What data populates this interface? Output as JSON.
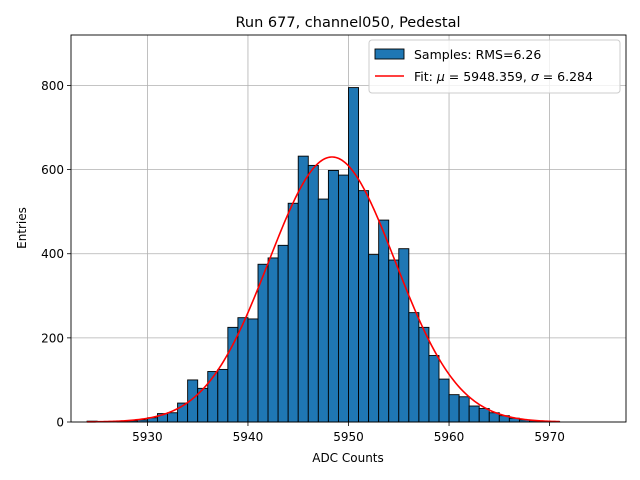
{
  "chart_data": {
    "type": "bar",
    "title": "Run 677, channel050, Pedestal",
    "xlabel": "ADC Counts",
    "ylabel": "Entries",
    "xlim": [
      5922.4,
      5977.6
    ],
    "ylim": [
      0,
      920
    ],
    "xticks": [
      5930,
      5940,
      5950,
      5960,
      5970
    ],
    "yticks": [
      0,
      200,
      400,
      600,
      800
    ],
    "grid": true,
    "legend_position": "top-right",
    "bar_color": "#1f77b4",
    "fit_color": "#ff0000",
    "legend": {
      "samples_label": "Samples: RMS=6.26",
      "fit_label_prefix": "Fit: ",
      "fit_mu_symbol": "μ",
      "fit_mu_text": " = 5948.359, ",
      "fit_sigma_symbol": "σ",
      "fit_sigma_text": " = 6.284"
    },
    "histogram": {
      "bin_width": 1,
      "bin_start": [
        5924,
        5925,
        5926,
        5927,
        5928,
        5929,
        5930,
        5931,
        5932,
        5933,
        5934,
        5935,
        5936,
        5937,
        5938,
        5939,
        5940,
        5941,
        5942,
        5943,
        5944,
        5945,
        5946,
        5947,
        5948,
        5949,
        5950,
        5951,
        5952,
        5953,
        5954,
        5955,
        5956,
        5957,
        5958,
        5959,
        5960,
        5961,
        5962,
        5963,
        5964,
        5965,
        5966,
        5967,
        5968,
        5969,
        5970,
        5971,
        5972,
        5973,
        5974,
        5975
      ],
      "counts": [
        2,
        1,
        0,
        1,
        3,
        5,
        10,
        20,
        22,
        45,
        100,
        80,
        120,
        125,
        225,
        248,
        245,
        375,
        390,
        420,
        520,
        632,
        610,
        530,
        598,
        587,
        795,
        550,
        398,
        480,
        385,
        412,
        260,
        225,
        158,
        102,
        65,
        60,
        38,
        32,
        22,
        15,
        9,
        5,
        3,
        2,
        1,
        0,
        0,
        0,
        0,
        0
      ]
    },
    "fit": {
      "type": "gaussian",
      "mu": 5948.359,
      "sigma": 6.284,
      "amplitude": 630,
      "x_range": [
        5924,
        5971
      ]
    }
  }
}
